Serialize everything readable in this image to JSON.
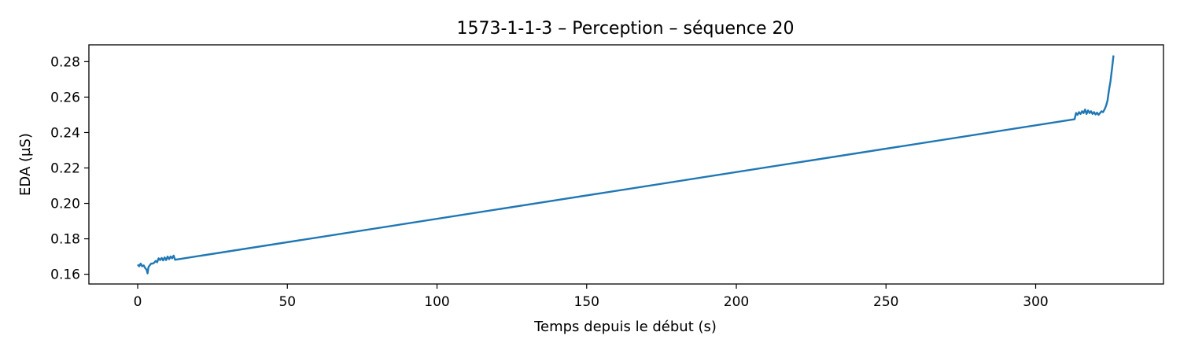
{
  "chart_data": {
    "type": "line",
    "title": "1573-1-1-3 – Perception – séquence 20",
    "xlabel": "Temps depuis le début (s)",
    "ylabel": "EDA (µS)",
    "xlim": [
      -16.3,
      342.7
    ],
    "ylim": [
      0.1545,
      0.2895
    ],
    "xticks": [
      0,
      50,
      100,
      150,
      200,
      250,
      300
    ],
    "xtick_labels": [
      "0",
      "50",
      "100",
      "150",
      "200",
      "250",
      "300"
    ],
    "yticks": [
      0.16,
      0.18,
      0.2,
      0.22,
      0.24,
      0.26,
      0.28
    ],
    "ytick_labels": [
      "0.16",
      "0.18",
      "0.20",
      "0.22",
      "0.24",
      "0.26",
      "0.28"
    ],
    "grid": false,
    "series": [
      {
        "color": "#1f77b4",
        "x": [
          0,
          0.5,
          1,
          1.5,
          2,
          2.5,
          3,
          3.3,
          3.6,
          4,
          4.5,
          5,
          5.5,
          6,
          6.5,
          7,
          7.5,
          8,
          8.5,
          9,
          9.5,
          10,
          10.5,
          11,
          11.5,
          12,
          12.5,
          313,
          313.5,
          314,
          314.5,
          315,
          315.5,
          316,
          316.5,
          317,
          317.5,
          318,
          318.5,
          319,
          319.5,
          320,
          320.5,
          321,
          321.5,
          322,
          322.5,
          323,
          323.5,
          324,
          324.5,
          325,
          325.5,
          326
        ],
        "y": [
          0.1655,
          0.1645,
          0.166,
          0.1645,
          0.165,
          0.1635,
          0.1625,
          0.1605,
          0.164,
          0.165,
          0.166,
          0.166,
          0.1665,
          0.1675,
          0.1668,
          0.169,
          0.168,
          0.1692,
          0.1678,
          0.1695,
          0.168,
          0.17,
          0.1685,
          0.17,
          0.169,
          0.1705,
          0.1682,
          0.2475,
          0.251,
          0.25,
          0.2515,
          0.2505,
          0.252,
          0.251,
          0.253,
          0.2505,
          0.2525,
          0.251,
          0.252,
          0.2505,
          0.2515,
          0.2502,
          0.2512,
          0.25,
          0.251,
          0.252,
          0.2515,
          0.253,
          0.255,
          0.258,
          0.264,
          0.269,
          0.276,
          0.2835
        ]
      }
    ]
  }
}
